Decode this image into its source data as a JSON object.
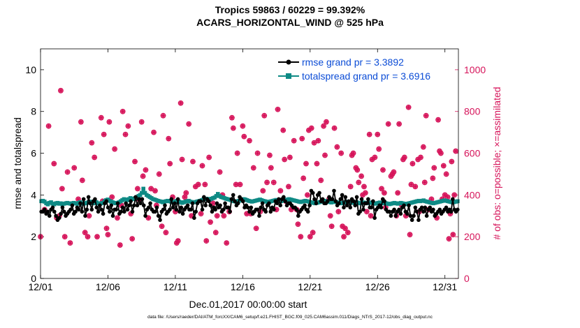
{
  "title_line1": "Tropics 59863 / 60229 = 99.392%",
  "title_line2": "ACARS_HORIZONTAL_WIND @ 525 hPa",
  "footnote": "data file: /Users/raeder/DAI/ATM_forcXX/CAM6_setup/f.e21.FHIST_BGC.f09_025.CAM6assim.011/Diags_NTrS_2017-12/obs_diag_output.nc",
  "colors": {
    "rmse": "#000000",
    "spread": "#0e8a85",
    "obs": "#d6145a",
    "legend_text": "#0b4cd6"
  },
  "chart_data": {
    "type": "line",
    "xlabel": "Dec.01,2017 00:00:00 start",
    "ylabel": "rmse and totalspread",
    "y2label": "# of obs: o=possible; ×=assimilated",
    "x_ticks": [
      "12/01",
      "12/06",
      "12/11",
      "12/16",
      "12/21",
      "12/26",
      "12/31"
    ],
    "x_tick_days": [
      0,
      5,
      10,
      15,
      20,
      25,
      30
    ],
    "xlim": [
      0,
      31
    ],
    "ylim": [
      0,
      11
    ],
    "y_ticks": [
      0,
      2,
      4,
      6,
      8,
      10
    ],
    "y2lim": [
      0,
      1100
    ],
    "y2_ticks": [
      0,
      200,
      400,
      600,
      800,
      1000
    ],
    "legend": [
      {
        "label": "rmse grand pr = 3.3892",
        "series": "rmse"
      },
      {
        "label": "totalspread grand pr = 3.6916",
        "series": "totalspread"
      }
    ],
    "series": [
      {
        "name": "rmse",
        "axis": "left",
        "values": [
          3.2,
          3.2,
          3.3,
          3.1,
          3.2,
          3.0,
          3.3,
          3.4,
          3.2,
          3.0,
          2.8,
          2.9,
          3.1,
          3.4,
          3.2,
          3.0,
          3.1,
          3.2,
          3.3,
          3.5,
          3.1,
          3.2,
          3.4,
          3.3,
          3.6,
          3.2,
          3.8,
          3.0,
          3.3,
          3.9,
          3.6,
          3.3,
          3.7,
          3.8,
          3.4,
          3.2,
          3.5,
          3.3,
          3.1,
          3.6,
          3.7,
          3.4,
          3.2,
          3.5,
          3.0,
          3.3,
          3.3,
          3.6,
          3.1,
          3.2,
          3.4,
          3.2,
          3.6,
          3.3,
          3.5,
          3.7,
          3.2,
          3.5,
          3.9,
          3.5,
          3.8,
          3.6,
          3.8,
          3.5,
          3.0,
          3.3,
          3.4,
          3.6,
          3.3,
          3.2,
          3.2,
          3.4,
          3.0,
          2.8,
          3.2,
          3.3,
          3.5,
          3.1,
          3.2,
          3.3,
          3.8,
          3.4,
          3.6,
          3.3,
          3.8,
          3.2,
          3.4,
          3.1,
          3.3,
          3.4,
          3.5,
          3.3,
          3.3,
          3.6,
          2.9,
          3.2,
          3.6,
          3.7,
          3.7,
          3.3,
          3.9,
          3.5,
          3.8,
          3.7,
          3.5,
          3.2,
          3.4,
          3.3,
          3.6,
          3.4,
          3.5,
          3.2,
          3.3,
          3.6,
          3.4,
          3.4,
          3.2,
          3.8,
          4.0,
          3.7,
          3.5,
          3.6,
          3.9,
          3.8,
          3.7,
          3.4,
          3.5,
          3.4,
          3.2,
          3.4,
          3.1,
          3.2,
          3.3,
          3.3,
          3.0,
          3.4,
          3.6,
          3.3,
          3.2,
          3.5,
          3.6,
          3.2,
          3.4,
          3.3,
          3.7,
          3.6,
          3.8,
          3.5,
          3.8,
          3.9,
          3.7,
          3.5,
          3.6,
          3.6,
          3.5,
          3.4,
          3.4,
          3.3,
          3.0,
          3.2,
          3.3,
          3.4,
          3.5,
          3.3,
          3.2,
          3.5,
          4.2,
          4.1,
          3.8,
          3.6,
          4.0,
          4.1,
          3.7,
          3.8,
          3.6,
          3.6,
          3.7,
          3.9,
          3.8,
          3.8,
          4.2,
          3.7,
          3.5,
          3.6,
          3.8,
          4.0,
          3.4,
          3.9,
          3.5,
          3.7,
          3.4,
          3.8,
          3.7,
          3.5,
          3.9,
          3.1,
          3.2,
          3.8,
          3.3,
          3.6,
          3.6,
          3.8,
          3.4,
          3.4,
          3.7,
          2.9,
          3.3,
          3.4,
          3.5,
          3.4,
          3.8,
          3.7,
          3.3,
          3.2,
          3.2,
          3.0,
          3.2,
          3.3,
          3.0,
          3.2,
          3.3,
          3.1,
          3.4,
          3.5,
          3.2,
          3.1,
          3.5,
          3.0,
          2.8,
          3.0,
          3.4,
          3.2,
          2.8,
          3.3,
          3.4,
          3.2,
          3.4,
          3.0,
          3.3,
          3.4,
          3.2,
          3.3,
          3.0,
          3.1,
          3.2,
          3.3,
          3.1,
          3.2,
          3.3,
          3.4,
          3.2,
          3.3,
          3.2,
          3.8,
          3.3,
          3.2,
          3.3
        ]
      },
      {
        "name": "totalspread",
        "axis": "left",
        "values": [
          3.7,
          3.72,
          3.68,
          3.6,
          3.55,
          3.62,
          3.65,
          3.58,
          3.55,
          3.6,
          3.62,
          3.58,
          3.6,
          3.55,
          3.58,
          3.6,
          3.62,
          3.6,
          3.58,
          3.6,
          3.62,
          3.6,
          3.58,
          3.62,
          3.65,
          3.6,
          3.58,
          3.6,
          3.62,
          3.65,
          3.68,
          3.62,
          3.6,
          3.62,
          3.65,
          3.6,
          3.58,
          3.6,
          3.62,
          3.7,
          3.75,
          3.78,
          3.72,
          3.68,
          3.65,
          3.62,
          3.6,
          3.62,
          3.65,
          3.7,
          3.75,
          3.8,
          3.78,
          3.75,
          3.8,
          3.85,
          3.82,
          3.8,
          3.85,
          3.9,
          3.95,
          4.0,
          4.1,
          4.3,
          4.1,
          4.0,
          3.95,
          3.9,
          3.85,
          3.8,
          3.78,
          3.75,
          3.72,
          3.7,
          3.68,
          3.65,
          3.68,
          3.7,
          3.72,
          3.7,
          3.68,
          3.65,
          3.66,
          3.7,
          3.72,
          3.68,
          3.65,
          3.62,
          3.65,
          3.68,
          3.7,
          3.72,
          3.68,
          3.66,
          3.65,
          3.66,
          3.68,
          3.7,
          3.72,
          3.75,
          3.78,
          3.8,
          3.82,
          3.8,
          3.78,
          3.82,
          3.85,
          3.88,
          3.95,
          4.05,
          3.95,
          3.9,
          3.88,
          3.85,
          3.82,
          3.8,
          3.78,
          3.75,
          3.72,
          3.7,
          3.68,
          3.7,
          3.72,
          3.75,
          3.78,
          3.8,
          3.78,
          3.75,
          3.72,
          3.7,
          3.68,
          3.7,
          3.72,
          3.74,
          3.76,
          3.78,
          3.75,
          3.72,
          3.7,
          3.68,
          3.66,
          3.68,
          3.7,
          3.72,
          3.74,
          3.76,
          3.74,
          3.72,
          3.7,
          3.72,
          3.74,
          3.76,
          3.78,
          3.8,
          3.78,
          3.76,
          3.74,
          3.72,
          3.7,
          3.68,
          3.66,
          3.68,
          3.7,
          3.72,
          3.7,
          3.68,
          3.66,
          3.64,
          3.62,
          3.6,
          3.62,
          3.64,
          3.66,
          3.68,
          3.7,
          3.72,
          3.7,
          3.68,
          3.66,
          3.64,
          3.66,
          3.68,
          3.66,
          3.64,
          3.62,
          3.6,
          3.62,
          3.64,
          3.66,
          3.68,
          3.66,
          3.64,
          3.62,
          3.64,
          3.66,
          3.64,
          3.62,
          3.6,
          3.62,
          3.64,
          3.62,
          3.6,
          3.62,
          3.64,
          3.62,
          3.6,
          3.58,
          3.6,
          3.62,
          3.64,
          3.62,
          3.6,
          3.62,
          3.6,
          3.58,
          3.56,
          3.58,
          3.6,
          3.62,
          3.6,
          3.58,
          3.6,
          3.62,
          3.6,
          3.58,
          3.56,
          3.58,
          3.6,
          3.62,
          3.64,
          3.66,
          3.68,
          3.7,
          3.72,
          3.7,
          3.72,
          3.74,
          3.7,
          3.68,
          3.66,
          3.64,
          3.62,
          3.6,
          3.62,
          3.64,
          3.66,
          3.68,
          3.7,
          3.72,
          3.74,
          3.72,
          3.7,
          3.68,
          3.66,
          3.64,
          3.66,
          3.68,
          3.7
        ]
      },
      {
        "name": "obs_assimilated",
        "axis": "right",
        "marker": "asterisk",
        "values": [
          200,
          330,
          730,
          550,
          290,
          300,
          900,
          430,
          200,
          510,
          170,
          530,
          380,
          750,
          470,
          220,
          200,
          300,
          650,
          580,
          200,
          770,
          370,
          690,
          240,
          210,
          750,
          390,
          620,
          290,
          160,
          350,
          800,
          690,
          730,
          310,
          190,
          560,
          430,
          380,
          750,
          490,
          520,
          290,
          430,
          700,
          420,
          350,
          500,
          250,
          780,
          220,
          670,
          550,
          390,
          320,
          170,
          180,
          840,
          570,
          390,
          410,
          740,
          300,
          560,
          440,
          450,
          310,
          540,
          450,
          180,
          580,
          270,
          360,
          220,
          300,
          510,
          400,
          300,
          170,
          320,
          770,
          720,
          450,
          600,
          450,
          730,
          680,
          310,
          660,
          310,
          530,
          240,
          600,
          320,
          420,
          780,
          460,
          590,
          530,
          460,
          330,
          810,
          420,
          710,
          570,
          370,
          440,
          580,
          330,
          660,
          330,
          260,
          200,
          670,
          480,
          550,
          400,
          710,
          200,
          720,
          220,
          650,
          550,
          660,
          470,
          730,
          590,
          750,
          380,
          300,
          250,
          720,
          630,
          320,
          600,
          250,
          200,
          240,
          220,
          440,
          590,
          600,
          530,
          520,
          460,
          490,
          400,
          440,
          410,
          320,
          690,
          300,
          570,
          580,
          690,
          620,
          430,
          520,
          410,
          340,
          740,
          490,
          500,
          510,
          300,
          410,
          740,
          350,
          570,
          580,
          300,
          820,
          210,
          450,
          550,
          440,
          570,
          320,
          580,
          630,
          460,
          780,
          330,
          380,
          480,
          530,
          290,
          760,
          610,
          600,
          380,
          540,
          400,
          500,
          390,
          190,
          310,
          560,
          210,
          400,
          610
        ]
      },
      {
        "name": "obs_possible",
        "axis": "right",
        "marker": "circle",
        "values": [
          200,
          330,
          730,
          550,
          290,
          300,
          900,
          430,
          200,
          510,
          170,
          530,
          380,
          750,
          470,
          220,
          200,
          300,
          650,
          580,
          200,
          770,
          370,
          690,
          240,
          210,
          750,
          390,
          620,
          290,
          160,
          350,
          800,
          690,
          730,
          310,
          190,
          560,
          430,
          380,
          750,
          490,
          520,
          290,
          430,
          700,
          420,
          350,
          500,
          250,
          780,
          220,
          670,
          550,
          390,
          320,
          170,
          180,
          840,
          570,
          390,
          410,
          740,
          300,
          560,
          440,
          450,
          310,
          540,
          450,
          180,
          580,
          270,
          360,
          220,
          300,
          510,
          400,
          300,
          170,
          320,
          770,
          720,
          450,
          600,
          450,
          730,
          680,
          310,
          660,
          310,
          530,
          240,
          600,
          320,
          420,
          780,
          460,
          590,
          530,
          460,
          330,
          810,
          420,
          710,
          570,
          370,
          440,
          580,
          330,
          660,
          330,
          260,
          200,
          670,
          480,
          550,
          400,
          710,
          200,
          720,
          220,
          650,
          550,
          660,
          470,
          730,
          590,
          750,
          380,
          300,
          250,
          720,
          630,
          320,
          600,
          250,
          200,
          240,
          220,
          440,
          590,
          600,
          530,
          520,
          460,
          490,
          400,
          440,
          410,
          320,
          690,
          300,
          570,
          580,
          690,
          620,
          430,
          520,
          410,
          340,
          740,
          490,
          500,
          510,
          300,
          410,
          740,
          350,
          570,
          580,
          300,
          820,
          210,
          450,
          550,
          440,
          570,
          320,
          580,
          630,
          460,
          780,
          330,
          380,
          480,
          530,
          290,
          760,
          610,
          600,
          380,
          540,
          400,
          500,
          390,
          190,
          310,
          560,
          210,
          400,
          610
        ]
      }
    ],
    "obs_days": [
      0,
      0.3,
      0.6,
      1,
      1.2,
      1.4,
      1.5,
      1.6,
      1.8,
      2,
      2.2,
      2.5,
      2.8,
      3,
      3.1,
      3.3,
      3.5,
      3.6,
      3.8,
      4,
      4.2,
      4.5,
      4.6,
      4.7,
      4.9,
      5,
      5.1,
      5.3,
      5.5,
      5.7,
      5.9,
      6,
      6.1,
      6.3,
      6.5,
      6.7,
      6.8,
      7,
      7.2,
      7.3,
      7.5,
      7.6,
      7.8,
      8,
      8.2,
      8.4,
      8.5,
      8.6,
      8.8,
      9,
      9.1,
      9.3,
      9.5,
      9.6,
      9.8,
      10,
      10.1,
      10.2,
      10.4,
      10.5,
      10.7,
      10.8,
      11,
      11.2,
      11.3,
      11.5,
      11.7,
      11.9,
      12,
      12.2,
      12.3,
      12.5,
      12.6,
      12.8,
      13,
      13.1,
      13.3,
      13.5,
      13.6,
      13.8,
      14,
      14.2,
      14.3,
      14.5,
      14.6,
      14.8,
      15,
      15.1,
      15.3,
      15.5,
      15.6,
      15.8,
      16,
      16.1,
      16.3,
      16.5,
      16.6,
      16.8,
      17,
      17.1,
      17.3,
      17.5,
      17.6,
      17.8,
      18,
      18.1,
      18.2,
      18.4,
      18.5,
      18.6,
      18.8,
      19,
      19.1,
      19.3,
      19.4,
      19.5,
      19.7,
      19.8,
      19.9,
      20,
      20.1,
      20.2,
      20.3,
      20.5,
      20.6,
      20.8,
      21,
      21.1,
      21.2,
      21.4,
      21.5,
      21.6,
      21.8,
      22,
      22.1,
      22.3,
      22.4,
      22.5,
      22.6,
      22.8,
      23,
      23.1,
      23.2,
      23.4,
      23.5,
      23.6,
      23.8,
      23.9,
      24,
      24.1,
      24.2,
      24.4,
      24.5,
      24.6,
      24.8,
      25,
      25.1,
      25.3,
      25.4,
      25.5,
      25.6,
      25.8,
      26,
      26.1,
      26.2,
      26.4,
      26.5,
      26.6,
      26.8,
      26.9,
      27,
      27.1,
      27.3,
      27.4,
      27.5,
      27.6,
      27.8,
      28,
      28.1,
      28.2,
      28.4,
      28.5,
      28.6,
      28.8,
      29,
      29.1,
      29.2,
      29.4,
      29.5,
      29.6,
      29.7,
      29.8,
      29.9,
      30,
      30.1,
      30.2,
      30.3,
      30.4,
      30.5,
      30.6,
      30.7,
      30.8
    ]
  }
}
